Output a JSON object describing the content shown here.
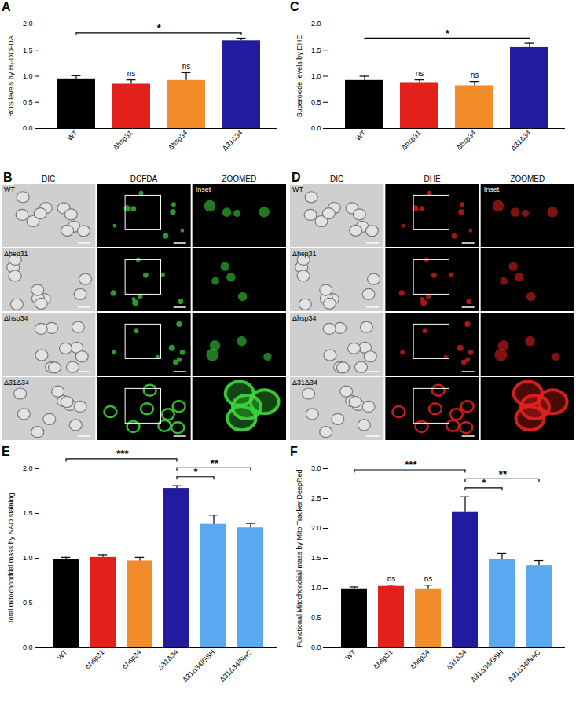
{
  "chart_data": [
    {
      "panel": "A",
      "type": "bar",
      "categories": [
        "WT",
        "Δhsp31",
        "Δhsp34",
        "Δ31Δ34"
      ],
      "values": [
        0.95,
        0.85,
        0.92,
        1.68
      ],
      "errors": [
        0.06,
        0.08,
        0.15,
        0.05
      ],
      "colors": [
        "#000000",
        "#e3211c",
        "#f28c28",
        "#211c9e"
      ],
      "y_label": "ROS levels by H₂-DCFDA",
      "ylim": [
        0,
        2.0
      ],
      "yticks": [
        {
          "value": 0,
          "label": "0.0"
        },
        {
          "value": 0.5,
          "label": "0.5"
        },
        {
          "value": 1.0,
          "label": "1.0"
        },
        {
          "value": 1.5,
          "label": "1.5"
        },
        {
          "value": 2.0,
          "label": "2.0"
        }
      ],
      "significance": [
        {
          "from": "WT",
          "to": "Δ31Δ34",
          "label": "*"
        }
      ],
      "bar_labels": [
        null,
        "ns",
        "ns",
        null
      ]
    },
    {
      "panel": "B",
      "type": "micrograph",
      "columns": [
        "DIC",
        "DCFDA",
        "ZOOMED"
      ],
      "rows": [
        "WT",
        "Δhsp31",
        "Δhsp34",
        "Δ31Δ34"
      ],
      "inset_label": "Inset",
      "color": "#3ddc3d"
    },
    {
      "panel": "C",
      "type": "bar",
      "categories": [
        "WT",
        "Δhsp31",
        "Δhsp34",
        "Δ31Δ34"
      ],
      "values": [
        0.92,
        0.88,
        0.82,
        1.55
      ],
      "errors": [
        0.08,
        0.05,
        0.08,
        0.08
      ],
      "colors": [
        "#000000",
        "#e3211c",
        "#f28c28",
        "#211c9e"
      ],
      "y_label": "Superoxide levels by DHE",
      "ylim": [
        0,
        2.0
      ],
      "yticks": [
        {
          "value": 0,
          "label": "0.0"
        },
        {
          "value": 0.5,
          "label": "0.5"
        },
        {
          "value": 1.0,
          "label": "1.0"
        },
        {
          "value": 1.5,
          "label": "1.5"
        },
        {
          "value": 2.0,
          "label": "2.0"
        }
      ],
      "significance": [
        {
          "from": "WT",
          "to": "Δ31Δ34",
          "label": "*"
        }
      ],
      "bar_labels": [
        null,
        "ns",
        "ns",
        null
      ]
    },
    {
      "panel": "D",
      "type": "micrograph",
      "columns": [
        "DIC",
        "DHE",
        "ZOOMED"
      ],
      "rows": [
        "WT",
        "Δhsp31",
        "Δhsp34",
        "Δ31Δ34"
      ],
      "inset_label": "Inset",
      "color": "#e8231e"
    },
    {
      "panel": "E",
      "type": "bar",
      "categories": [
        "WT",
        "Δhsp31",
        "Δhsp34",
        "Δ31Δ34",
        "Δ31Δ34/GSH",
        "Δ31Δ34/NAC"
      ],
      "values": [
        0.99,
        1.01,
        0.97,
        1.78,
        1.38,
        1.34
      ],
      "errors": [
        0.02,
        0.03,
        0.04,
        0.03,
        0.1,
        0.05
      ],
      "colors": [
        "#000000",
        "#e3211c",
        "#f28c28",
        "#211c9e",
        "#5aa9f0",
        "#5aa9f0"
      ],
      "y_label": "Total mitochondrial mass by NAO staining",
      "ylim": [
        0,
        2.0
      ],
      "yticks": [
        {
          "value": 0,
          "label": "0.0"
        },
        {
          "value": 0.5,
          "label": "0.5"
        },
        {
          "value": 1.0,
          "label": "1.0"
        },
        {
          "value": 1.5,
          "label": "1.5"
        },
        {
          "value": 2.0,
          "label": "2.0"
        }
      ],
      "significance": [
        {
          "from": "Δ31Δ34",
          "to": "Δ31Δ34/GSH",
          "label": "*"
        },
        {
          "from": "Δ31Δ34",
          "to": "Δ31Δ34/NAC",
          "label": "**"
        },
        {
          "from": "WT",
          "to": "Δ31Δ34",
          "label": "***"
        }
      ],
      "bar_labels": [
        null,
        null,
        null,
        null,
        null,
        null
      ]
    },
    {
      "panel": "F",
      "type": "bar",
      "categories": [
        "WT",
        "Δhsp31",
        "Δhsp34",
        "Δ31Δ34",
        "Δ31Δ34/GSH",
        "Δ31Δ34/NAC"
      ],
      "values": [
        0.99,
        1.03,
        0.99,
        2.28,
        1.48,
        1.38
      ],
      "errors": [
        0.03,
        0.02,
        0.06,
        0.25,
        0.1,
        0.08
      ],
      "colors": [
        "#000000",
        "#e3211c",
        "#f28c28",
        "#211c9e",
        "#5aa9f0",
        "#5aa9f0"
      ],
      "y_label": "Functional Mitochondrial mass by Mito Tracker DeepRed",
      "ylim": [
        0,
        3.0
      ],
      "yticks": [
        {
          "value": 0,
          "label": "0.0"
        },
        {
          "value": 0.5,
          "label": "0.5"
        },
        {
          "value": 1.0,
          "label": "1.0"
        },
        {
          "value": 1.5,
          "label": "1.5"
        },
        {
          "value": 2.0,
          "label": "2.0"
        },
        {
          "value": 2.5,
          "label": "2.5"
        },
        {
          "value": 3.0,
          "label": "3.0"
        }
      ],
      "significance": [
        {
          "from": "Δ31Δ34",
          "to": "Δ31Δ34/GSH",
          "label": "*"
        },
        {
          "from": "Δ31Δ34",
          "to": "Δ31Δ34/NAC",
          "label": "**"
        },
        {
          "from": "WT",
          "to": "Δ31Δ34",
          "label": "***"
        }
      ],
      "bar_labels": [
        null,
        "ns",
        "ns",
        null,
        null,
        null
      ]
    }
  ]
}
